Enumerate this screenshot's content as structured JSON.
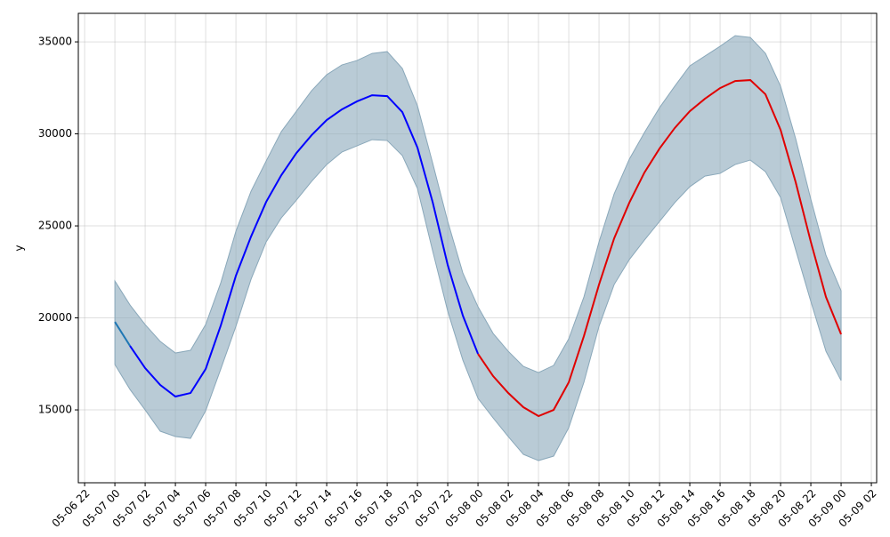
{
  "chart_data": {
    "type": "line",
    "ylabel": "y",
    "x": [
      "05-07 00",
      "05-07 01",
      "05-07 02",
      "05-07 03",
      "05-07 04",
      "05-07 05",
      "05-07 06",
      "05-07 07",
      "05-07 08",
      "05-07 09",
      "05-07 10",
      "05-07 11",
      "05-07 12",
      "05-07 13",
      "05-07 14",
      "05-07 15",
      "05-07 16",
      "05-07 17",
      "05-07 18",
      "05-07 19",
      "05-07 20",
      "05-07 21",
      "05-07 22",
      "05-07 23",
      "05-08 00",
      "05-08 01",
      "05-08 02",
      "05-08 03",
      "05-08 04",
      "05-08 05",
      "05-08 06",
      "05-08 07",
      "05-08 08",
      "05-08 09",
      "05-08 10",
      "05-08 11",
      "05-08 12",
      "05-08 13",
      "05-08 14",
      "05-08 15",
      "05-08 16",
      "05-08 17",
      "05-08 18",
      "05-08 19",
      "05-08 20",
      "05-08 21",
      "05-08 22",
      "05-08 23",
      "05-09 00"
    ],
    "series": [
      {
        "color": "#1f77b4",
        "values": [
          19783,
          18478,
          null,
          null,
          null,
          null,
          null,
          null,
          null,
          null,
          null,
          null,
          null,
          null,
          null,
          null,
          null,
          null,
          null,
          null,
          null,
          null,
          null,
          null,
          null,
          null,
          null,
          null,
          null,
          null,
          null,
          null,
          null,
          null,
          null,
          null,
          null,
          null,
          null,
          null,
          null,
          null,
          null,
          null,
          null,
          null,
          null,
          null,
          null
        ]
      },
      {
        "color": "#0000ff",
        "values": [
          null,
          18478,
          17270,
          16353,
          15725,
          15918,
          17222,
          19589,
          22295,
          24420,
          26304,
          27754,
          28961,
          29928,
          30749,
          31329,
          31763,
          32101,
          32053,
          31184,
          29251,
          26304,
          22874,
          20121,
          18043,
          null,
          null,
          null,
          null,
          null,
          null,
          null,
          null,
          null,
          null,
          null,
          null,
          null,
          null,
          null,
          null,
          null,
          null,
          null,
          null,
          null,
          null,
          null,
          null
        ]
      },
      {
        "color": "#e00000",
        "values": [
          null,
          null,
          null,
          null,
          null,
          null,
          null,
          null,
          null,
          null,
          null,
          null,
          null,
          null,
          null,
          null,
          null,
          null,
          null,
          null,
          null,
          null,
          null,
          null,
          18043,
          16836,
          15918,
          15145,
          14662,
          15000,
          16498,
          19010,
          21812,
          24324,
          26256,
          27899,
          29203,
          30314,
          31232,
          31908,
          32488,
          32874,
          32923,
          32150,
          30217,
          27367,
          24130,
          21135,
          19106
        ]
      }
    ],
    "band": {
      "color": "#8aa8ba",
      "upper": [
        22005,
        20700,
        19638,
        18720,
        18092,
        18237,
        19638,
        21908,
        24710,
        26884,
        28527,
        30121,
        31232,
        32343,
        33213,
        33744,
        33986,
        34372,
        34469,
        33551,
        31522,
        28430,
        25242,
        22440,
        20604,
        19155,
        18188,
        17367,
        17029,
        17415,
        18865,
        21135,
        24130,
        26739,
        28623,
        30072,
        31425,
        32585,
        33696,
        34227,
        34758,
        35338,
        35242,
        34372,
        32585,
        29734,
        26449,
        23406,
        21473
      ],
      "lower": [
        17464,
        16111,
        15000,
        13841,
        13551,
        13454,
        14952,
        17222,
        19541,
        22101,
        24130,
        25435,
        26401,
        27415,
        28333,
        29010,
        29348,
        29686,
        29638,
        28816,
        27029,
        23647,
        20362,
        17705,
        15628,
        14565,
        13551,
        12585,
        12246,
        12488,
        14034,
        16498,
        19541,
        21812,
        23164,
        24227,
        25242,
        26256,
        27126,
        27705,
        27850,
        28333,
        28575,
        27947,
        26546,
        23696,
        20894,
        18188,
        16594
      ]
    },
    "xlim": [
      "05-06 21:35",
      "05-09 02:21"
    ],
    "xticks": [
      "05-06 22",
      "05-07 00",
      "05-07 02",
      "05-07 04",
      "05-07 06",
      "05-07 08",
      "05-07 10",
      "05-07 12",
      "05-07 14",
      "05-07 16",
      "05-07 18",
      "05-07 20",
      "05-07 22",
      "05-08 00",
      "05-08 02",
      "05-08 04",
      "05-08 06",
      "05-08 08",
      "05-08 10",
      "05-08 12",
      "05-08 14",
      "05-08 16",
      "05-08 18",
      "05-08 20",
      "05-08 22",
      "05-09 00",
      "05-09 02"
    ],
    "ylim": [
      11040,
      36550
    ],
    "yticks": [
      15000,
      20000,
      25000,
      30000,
      35000
    ],
    "grid": true
  }
}
